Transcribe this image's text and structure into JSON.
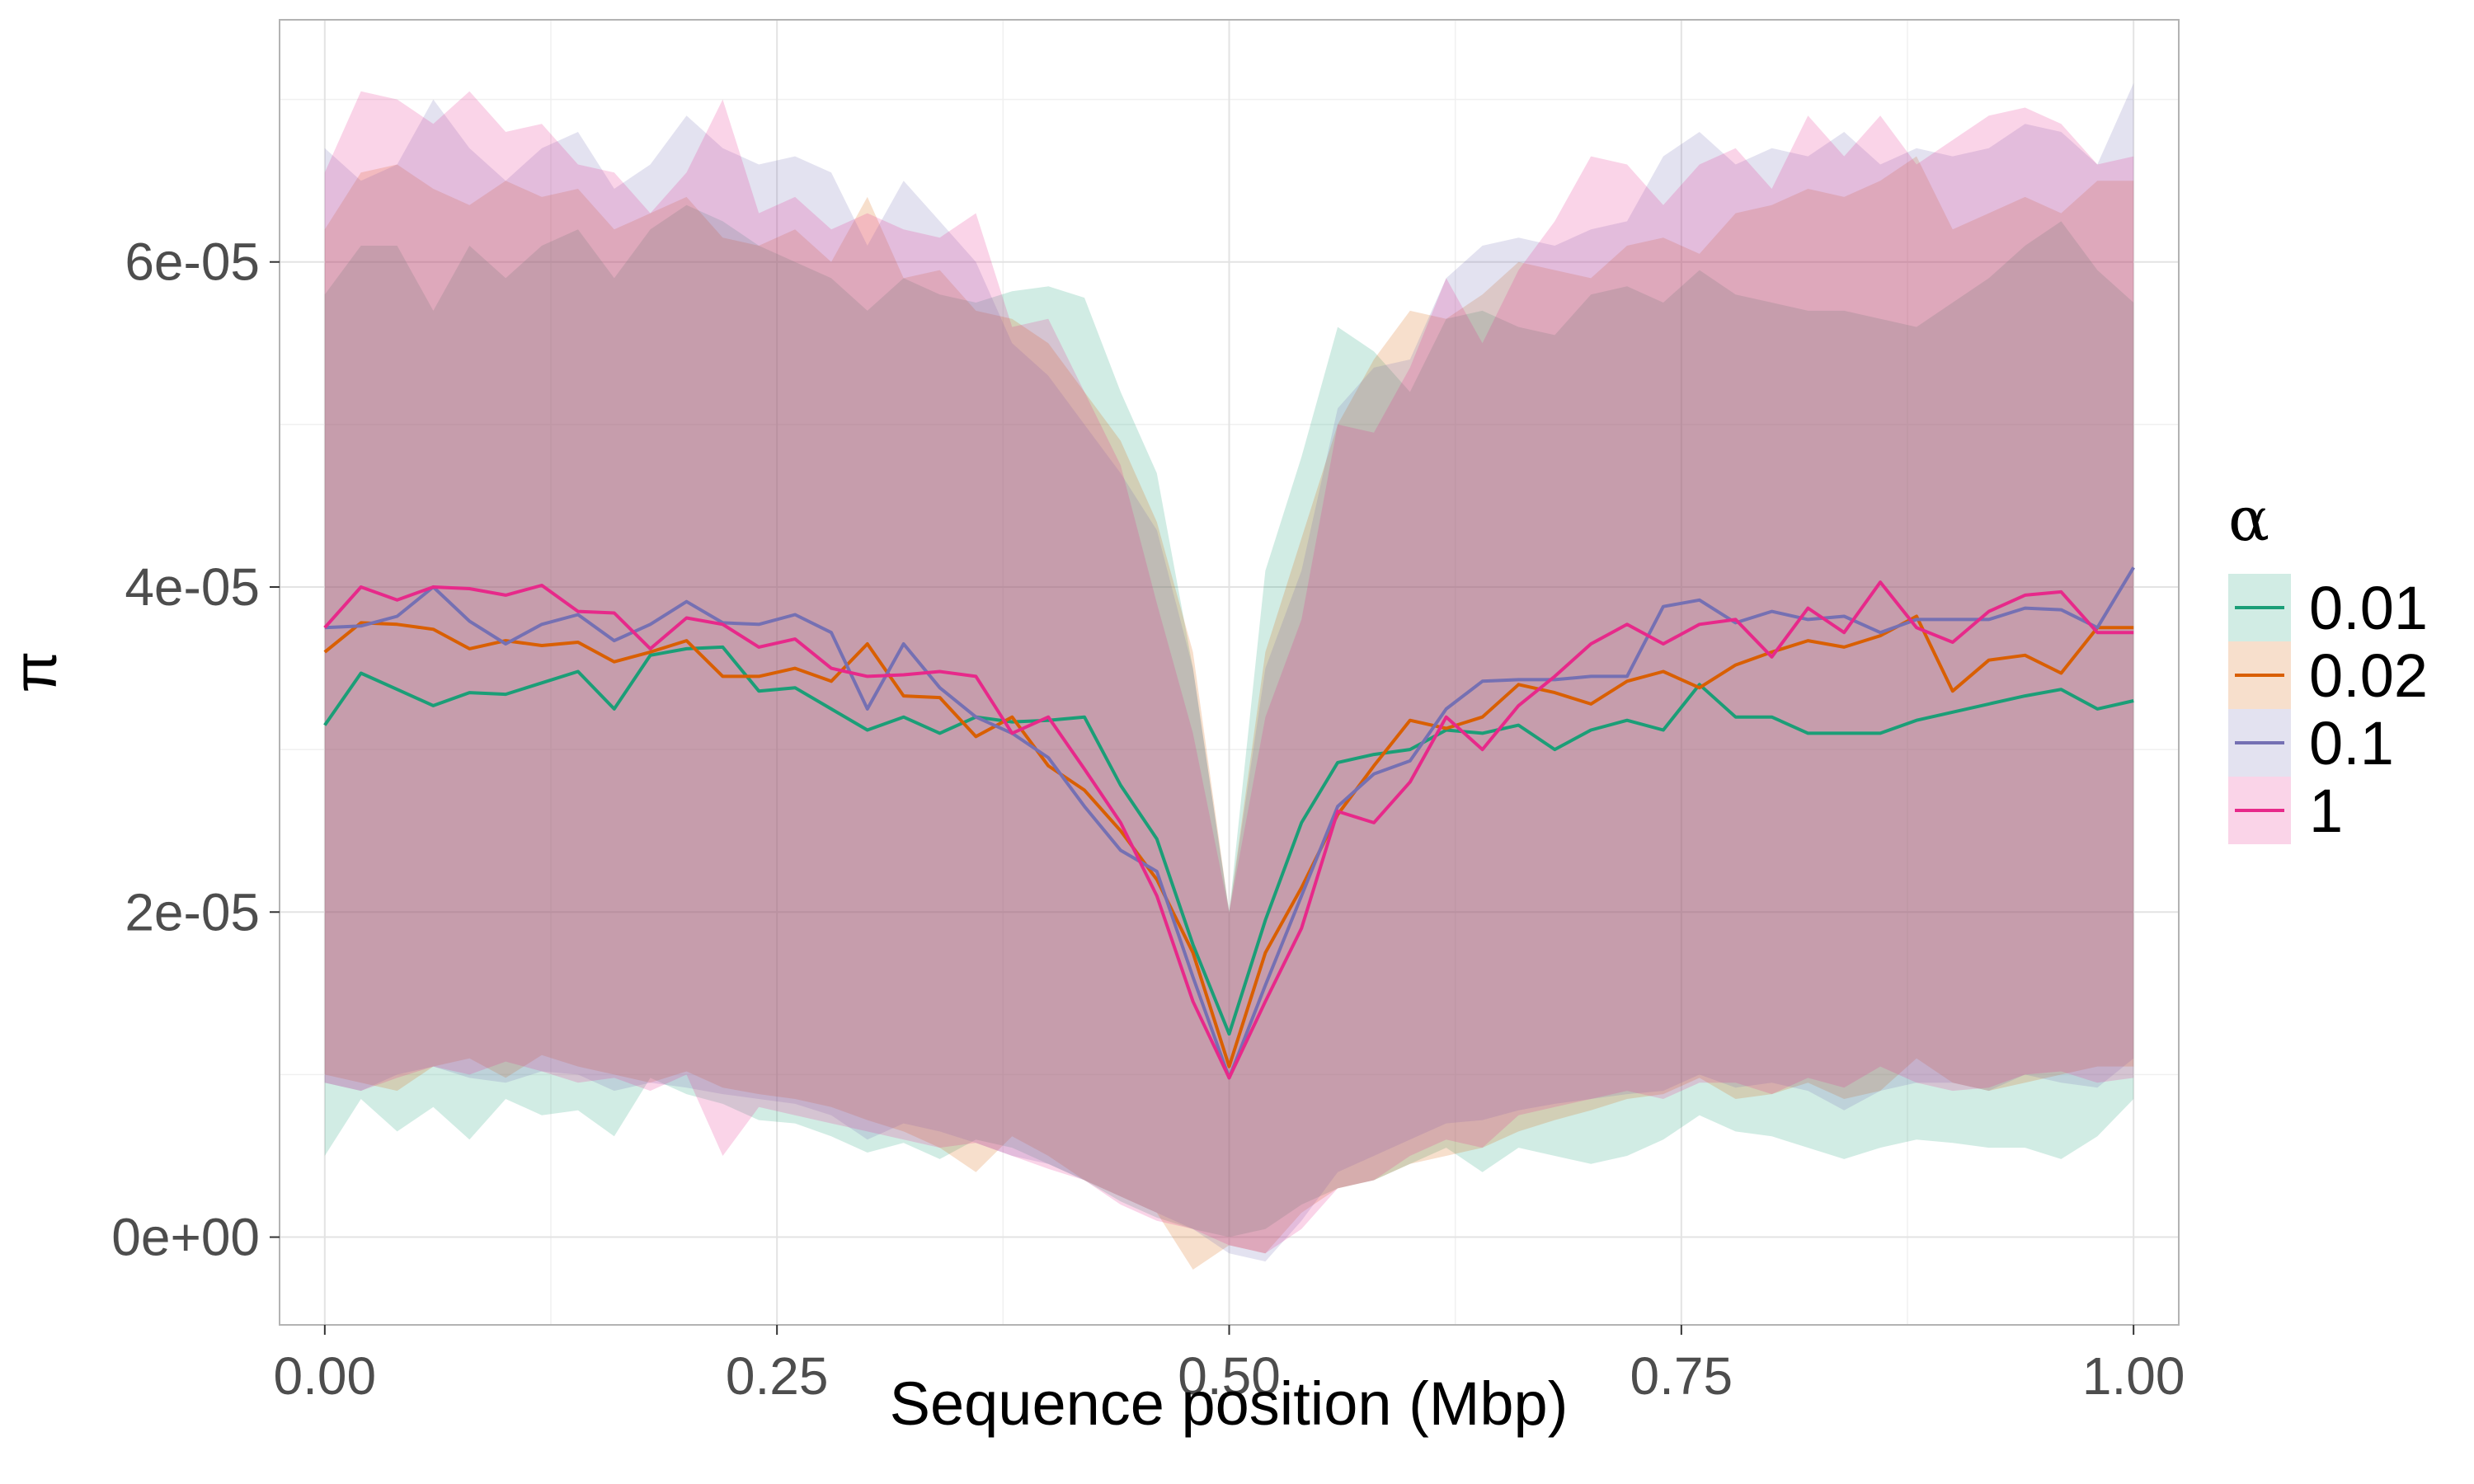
{
  "chart_data": {
    "type": "line",
    "title": "",
    "xlabel": "Sequence position (Mbp)",
    "ylabel": "π",
    "xlim": [
      -0.025,
      1.025
    ],
    "ylim": [
      -5.4e-06,
      7.49e-05
    ],
    "grid": true,
    "legend": {
      "title": "α",
      "position": "right"
    },
    "x_ticks": [
      {
        "value": 0.0,
        "label": "0.00"
      },
      {
        "value": 0.25,
        "label": "0.25"
      },
      {
        "value": 0.5,
        "label": "0.50"
      },
      {
        "value": 0.75,
        "label": "0.75"
      },
      {
        "value": 1.0,
        "label": "1.00"
      }
    ],
    "y_ticks": [
      {
        "value": 0.0,
        "label": "0e+00"
      },
      {
        "value": 2e-05,
        "label": "2e-05"
      },
      {
        "value": 4e-05,
        "label": "4e-05"
      },
      {
        "value": 6e-05,
        "label": "6e-05"
      }
    ],
    "x": [
      0.0,
      0.02,
      0.04,
      0.06,
      0.08,
      0.1,
      0.12,
      0.14,
      0.16,
      0.18,
      0.2,
      0.22,
      0.24,
      0.26,
      0.28,
      0.3,
      0.32,
      0.34,
      0.36,
      0.38,
      0.4,
      0.42,
      0.44,
      0.46,
      0.48,
      0.5,
      0.52,
      0.54,
      0.56,
      0.58,
      0.6,
      0.62,
      0.64,
      0.66,
      0.68,
      0.7,
      0.72,
      0.74,
      0.76,
      0.78,
      0.8,
      0.82,
      0.84,
      0.86,
      0.88,
      0.9,
      0.92,
      0.94,
      0.96,
      0.98,
      1.0
    ],
    "series": [
      {
        "name": "0.01",
        "color": "#1B9E77",
        "values": [
          3.15e-05,
          3.47e-05,
          3.37e-05,
          3.27e-05,
          3.35e-05,
          3.34e-05,
          3.41e-05,
          3.48e-05,
          3.25e-05,
          3.58e-05,
          3.62e-05,
          3.63e-05,
          3.36e-05,
          3.38e-05,
          3.25e-05,
          3.12e-05,
          3.2e-05,
          3.1e-05,
          3.2e-05,
          3.17e-05,
          3.18e-05,
          3.2e-05,
          2.78e-05,
          2.45e-05,
          1.8e-05,
          1.25e-05,
          1.95e-05,
          2.55e-05,
          2.92e-05,
          2.97e-05,
          3e-05,
          3.12e-05,
          3.1e-05,
          3.15e-05,
          3e-05,
          3.12e-05,
          3.18e-05,
          3.12e-05,
          3.4e-05,
          3.2e-05,
          3.2e-05,
          3.1e-05,
          3.1e-05,
          3.1e-05,
          3.18e-05,
          3.23e-05,
          3.28e-05,
          3.33e-05,
          3.37e-05,
          3.25e-05,
          3.3e-05
        ],
        "lower": [
          5e-06,
          8.5e-06,
          6.5e-06,
          8e-06,
          6e-06,
          8.5e-06,
          7.5e-06,
          7.8e-06,
          6.2e-06,
          9.8e-06,
          8.8e-06,
          8.2e-06,
          7.2e-06,
          7e-06,
          6.2e-06,
          5.2e-06,
          5.8e-06,
          4.8e-06,
          6e-06,
          5.5e-06,
          4.5e-06,
          3.5e-06,
          2.2e-06,
          1.2e-06,
          5e-07,
          0.0,
          5e-07,
          2e-06,
          3e-06,
          3.5e-06,
          4.5e-06,
          5.5e-06,
          4e-06,
          5.5e-06,
          5e-06,
          4.5e-06,
          5e-06,
          6e-06,
          7.5e-06,
          6.5e-06,
          6.2e-06,
          5.5e-06,
          4.8e-06,
          5.5e-06,
          6e-06,
          5.8e-06,
          5.5e-06,
          5.5e-06,
          4.8e-06,
          6.2e-06,
          8.5e-06
        ],
        "upper": [
          5.8e-05,
          6.1e-05,
          6.1e-05,
          5.7e-05,
          6.1e-05,
          5.9e-05,
          6.1e-05,
          6.2e-05,
          5.9e-05,
          6.2e-05,
          6.35e-05,
          6.25e-05,
          6.1e-05,
          6e-05,
          5.9e-05,
          5.7e-05,
          5.9e-05,
          5.8e-05,
          5.75e-05,
          5.82e-05,
          5.85e-05,
          5.78e-05,
          5.2e-05,
          4.7e-05,
          3.5e-05,
          2e-05,
          4.1e-05,
          4.8e-05,
          5.6e-05,
          5.45e-05,
          5.2e-05,
          5.65e-05,
          5.7e-05,
          5.6e-05,
          5.55e-05,
          5.8e-05,
          5.85e-05,
          5.75e-05,
          5.95e-05,
          5.8e-05,
          5.75e-05,
          5.7e-05,
          5.7e-05,
          5.65e-05,
          5.6e-05,
          5.75e-05,
          5.9e-05,
          6.1e-05,
          6.25e-05,
          5.95e-05,
          5.75e-05
        ]
      },
      {
        "name": "0.02",
        "color": "#D95F02",
        "values": [
          3.6e-05,
          3.78e-05,
          3.77e-05,
          3.74e-05,
          3.62e-05,
          3.67e-05,
          3.64e-05,
          3.66e-05,
          3.54e-05,
          3.6e-05,
          3.67e-05,
          3.45e-05,
          3.45e-05,
          3.5e-05,
          3.42e-05,
          3.65e-05,
          3.33e-05,
          3.32e-05,
          3.08e-05,
          3.2e-05,
          2.9e-05,
          2.75e-05,
          2.5e-05,
          2.2e-05,
          1.75e-05,
          1.05e-05,
          1.75e-05,
          2.15e-05,
          2.6e-05,
          2.9e-05,
          3.18e-05,
          3.13e-05,
          3.2e-05,
          3.4e-05,
          3.35e-05,
          3.28e-05,
          3.42e-05,
          3.48e-05,
          3.38e-05,
          3.52e-05,
          3.6e-05,
          3.67e-05,
          3.63e-05,
          3.7e-05,
          3.82e-05,
          3.36e-05,
          3.55e-05,
          3.58e-05,
          3.47e-05,
          3.75e-05,
          3.75e-05
        ],
        "lower": [
          1e-05,
          9.5e-06,
          9e-06,
          1.05e-05,
          1.1e-05,
          9.8e-06,
          1.12e-05,
          1.05e-05,
          1e-05,
          9.5e-06,
          1.02e-05,
          9.2e-06,
          8.8e-06,
          8.5e-06,
          8e-06,
          7.2e-06,
          6.5e-06,
          5.5e-06,
          4e-06,
          6.2e-06,
          5e-06,
          3.5e-06,
          2.5e-06,
          1.5e-06,
          -2e-06,
          -5e-07,
          -1e-06,
          1.5e-06,
          3e-06,
          3.5e-06,
          4.5e-06,
          5e-06,
          5.5e-06,
          6.5e-06,
          7.2e-06,
          7.8e-06,
          8.5e-06,
          8.8e-06,
          9.8e-06,
          8.5e-06,
          8.8e-06,
          9.5e-06,
          8.5e-06,
          9e-06,
          1.1e-05,
          9.5e-06,
          9e-06,
          9.5e-06,
          1e-05,
          1.05e-05,
          1.05e-05
        ],
        "upper": [
          6.2e-05,
          6.55e-05,
          6.6e-05,
          6.45e-05,
          6.35e-05,
          6.5e-05,
          6.4e-05,
          6.45e-05,
          6.2e-05,
          6.3e-05,
          6.4e-05,
          6.15e-05,
          6.1e-05,
          6.2e-05,
          6e-05,
          6.4e-05,
          5.9e-05,
          5.95e-05,
          5.7e-05,
          5.65e-05,
          5.5e-05,
          5.2e-05,
          4.9e-05,
          4.4e-05,
          3.6e-05,
          2e-05,
          3.6e-05,
          4.3e-05,
          5e-05,
          5.4e-05,
          5.7e-05,
          5.65e-05,
          5.8e-05,
          6e-05,
          5.95e-05,
          5.9e-05,
          6.1e-05,
          6.15e-05,
          6.05e-05,
          6.3e-05,
          6.35e-05,
          6.45e-05,
          6.4e-05,
          6.5e-05,
          6.65e-05,
          6.2e-05,
          6.3e-05,
          6.4e-05,
          6.3e-05,
          6.5e-05,
          6.5e-05
        ]
      },
      {
        "name": "0.1",
        "color": "#7570B3",
        "values": [
          3.75e-05,
          3.76e-05,
          3.82e-05,
          4e-05,
          3.79e-05,
          3.65e-05,
          3.77e-05,
          3.83e-05,
          3.67e-05,
          3.77e-05,
          3.91e-05,
          3.78e-05,
          3.77e-05,
          3.83e-05,
          3.72e-05,
          3.25e-05,
          3.65e-05,
          3.38e-05,
          3.2e-05,
          3.1e-05,
          2.95e-05,
          2.65e-05,
          2.38e-05,
          2.25e-05,
          1.6e-05,
          9.8e-06,
          1.55e-05,
          2.1e-05,
          2.65e-05,
          2.85e-05,
          2.93e-05,
          3.25e-05,
          3.42e-05,
          3.43e-05,
          3.43e-05,
          3.45e-05,
          3.45e-05,
          3.88e-05,
          3.92e-05,
          3.78e-05,
          3.85e-05,
          3.8e-05,
          3.82e-05,
          3.72e-05,
          3.8e-05,
          3.8e-05,
          3.8e-05,
          3.87e-05,
          3.86e-05,
          3.75e-05,
          4.12e-05
        ],
        "lower": [
          9.5e-06,
          9e-06,
          1e-05,
          1.05e-05,
          9.8e-06,
          9.5e-06,
          1.02e-05,
          1e-05,
          9e-06,
          9.5e-06,
          9.2e-06,
          8.8e-06,
          8.5e-06,
          8.2e-06,
          7.5e-06,
          6e-06,
          7e-06,
          6.5e-06,
          5.8e-06,
          5e-06,
          4.5e-06,
          3.5e-06,
          2.5e-06,
          1.5e-06,
          5e-07,
          -1e-06,
          -1.5e-06,
          1e-06,
          4e-06,
          5e-06,
          6e-06,
          7e-06,
          7.2e-06,
          7.8e-06,
          8.2e-06,
          8.5e-06,
          8.8e-06,
          9e-06,
          1e-05,
          9.2e-06,
          9.5e-06,
          9e-06,
          7.8e-06,
          9e-06,
          9.5e-06,
          9.5e-06,
          9e-06,
          1e-05,
          9.5e-06,
          9.2e-06,
          1.1e-05
        ],
        "upper": [
          6.7e-05,
          6.5e-05,
          6.6e-05,
          7e-05,
          6.7e-05,
          6.5e-05,
          6.7e-05,
          6.8e-05,
          6.45e-05,
          6.6e-05,
          6.9e-05,
          6.7e-05,
          6.6e-05,
          6.65e-05,
          6.55e-05,
          6.1e-05,
          6.5e-05,
          6.25e-05,
          6e-05,
          5.5e-05,
          5.3e-05,
          5e-05,
          4.7e-05,
          4.35e-05,
          3.5e-05,
          2e-05,
          3.5e-05,
          4.1e-05,
          5.1e-05,
          5.35e-05,
          5.4e-05,
          5.9e-05,
          6.1e-05,
          6.15e-05,
          6.1e-05,
          6.2e-05,
          6.25e-05,
          6.65e-05,
          6.8e-05,
          6.6e-05,
          6.7e-05,
          6.65e-05,
          6.8e-05,
          6.6e-05,
          6.7e-05,
          6.65e-05,
          6.7e-05,
          6.85e-05,
          6.8e-05,
          6.6e-05,
          7.1e-05
        ]
      },
      {
        "name": "1",
        "color": "#E7298A",
        "values": [
          3.75e-05,
          4e-05,
          3.92e-05,
          4e-05,
          3.99e-05,
          3.95e-05,
          4.01e-05,
          3.85e-05,
          3.84e-05,
          3.62e-05,
          3.81e-05,
          3.77e-05,
          3.63e-05,
          3.68e-05,
          3.5e-05,
          3.45e-05,
          3.46e-05,
          3.48e-05,
          3.45e-05,
          3.1e-05,
          3.2e-05,
          2.88e-05,
          2.55e-05,
          2.1e-05,
          1.45e-05,
          9.8e-06,
          1.45e-05,
          1.9e-05,
          2.62e-05,
          2.55e-05,
          2.8e-05,
          3.2e-05,
          3e-05,
          3.27e-05,
          3.45e-05,
          3.65e-05,
          3.77e-05,
          3.65e-05,
          3.77e-05,
          3.8e-05,
          3.57e-05,
          3.87e-05,
          3.72e-05,
          4.03e-05,
          3.75e-05,
          3.66e-05,
          3.85e-05,
          3.95e-05,
          3.97e-05,
          3.72e-05,
          3.72e-05
        ],
        "lower": [
          9.5e-06,
          9e-06,
          9.8e-06,
          1.05e-05,
          1e-05,
          1.08e-05,
          1.02e-05,
          9.5e-06,
          9.8e-06,
          9e-06,
          1e-05,
          5e-06,
          8e-06,
          7.5e-06,
          7e-06,
          6.5e-06,
          6e-06,
          5.5e-06,
          5.8e-06,
          5e-06,
          4.2e-06,
          3.5e-06,
          2e-06,
          1e-06,
          5e-07,
          -5e-07,
          -1e-06,
          5e-07,
          3e-06,
          3.5e-06,
          5e-06,
          6e-06,
          5.5e-06,
          7.5e-06,
          8e-06,
          8.5e-06,
          9e-06,
          8.5e-06,
          9.5e-06,
          9.5e-06,
          8.8e-06,
          9.8e-06,
          9.2e-06,
          1.05e-05,
          9.5e-06,
          9e-06,
          9.2e-06,
          1e-05,
          1.02e-05,
          9.5e-06,
          9.8e-06
        ],
        "upper": [
          6.55e-05,
          7.05e-05,
          7e-05,
          6.85e-05,
          7.05e-05,
          6.8e-05,
          6.85e-05,
          6.6e-05,
          6.55e-05,
          6.3e-05,
          6.55e-05,
          7e-05,
          6.3e-05,
          6.4e-05,
          6.2e-05,
          6.3e-05,
          6.2e-05,
          6.15e-05,
          6.3e-05,
          5.6e-05,
          5.65e-05,
          5.2e-05,
          4.75e-05,
          3.9e-05,
          3.1e-05,
          2e-05,
          3.2e-05,
          3.8e-05,
          5e-05,
          4.95e-05,
          5.35e-05,
          5.9e-05,
          5.5e-05,
          5.95e-05,
          6.25e-05,
          6.65e-05,
          6.6e-05,
          6.35e-05,
          6.6e-05,
          6.7e-05,
          6.45e-05,
          6.9e-05,
          6.65e-05,
          6.9e-05,
          6.6e-05,
          6.75e-05,
          6.9e-05,
          6.95e-05,
          6.85e-05,
          6.6e-05,
          6.65e-05
        ]
      }
    ]
  }
}
